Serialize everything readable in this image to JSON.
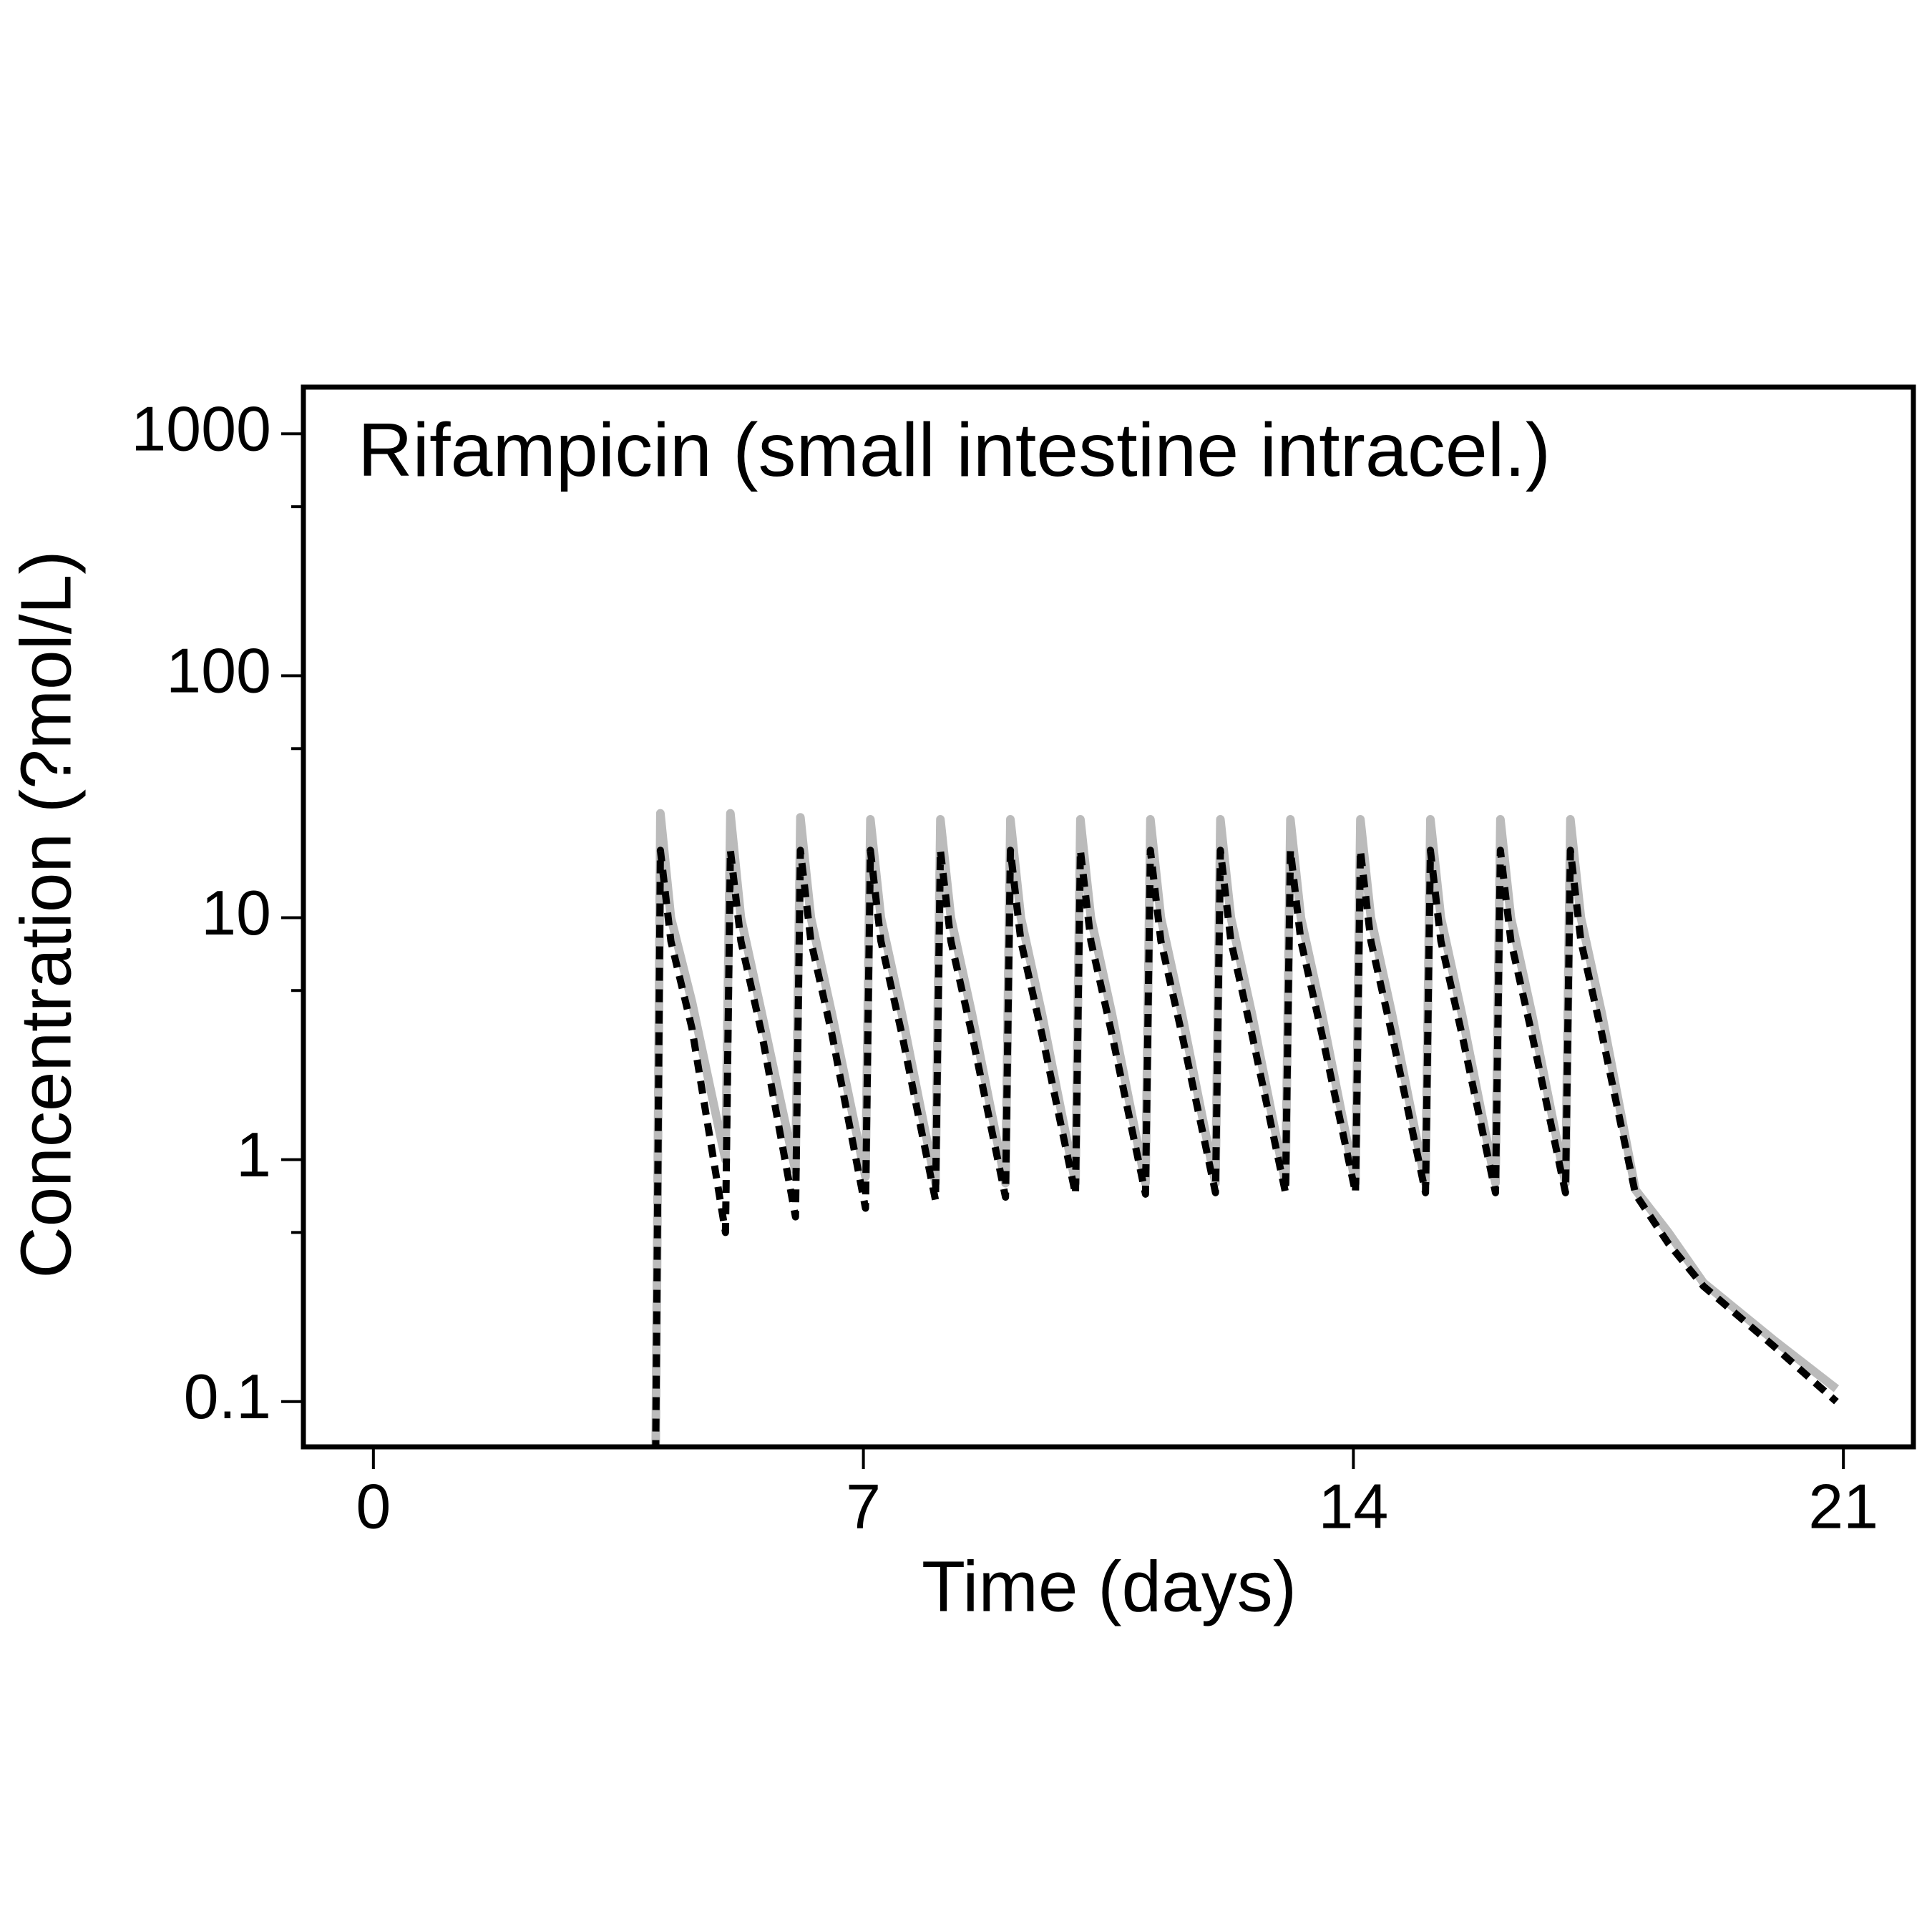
{
  "chart_data": {
    "type": "line",
    "title": "Rifampicin (small intestine intracel.)",
    "x_label": "Time (days)",
    "y_label": "Concentration (?mol/L)",
    "yscale": "log",
    "xlim": [
      -1,
      22
    ],
    "xticks": [
      0,
      7,
      14,
      21
    ],
    "ylim": [
      0.065,
      1560
    ],
    "yticks": [
      0.1,
      1,
      10,
      100,
      1000
    ],
    "yticks_minor": [
      0.5,
      5,
      50,
      500
    ],
    "x": [
      4.03,
      4.1,
      4.25,
      4.55,
      5.03,
      5.1,
      5.25,
      5.55,
      6.03,
      6.1,
      6.25,
      6.55,
      7.03,
      7.1,
      7.25,
      7.55,
      8.03,
      8.1,
      8.25,
      8.55,
      9.03,
      9.1,
      9.25,
      9.55,
      10.03,
      10.1,
      10.25,
      10.55,
      11.03,
      11.1,
      11.25,
      11.55,
      12.03,
      12.1,
      12.25,
      12.55,
      13.03,
      13.1,
      13.25,
      13.55,
      14.03,
      14.1,
      14.25,
      14.55,
      15.03,
      15.1,
      15.25,
      15.55,
      16.03,
      16.1,
      16.25,
      16.55,
      17.03,
      17.1,
      17.25,
      17.55,
      18.03,
      18.5,
      19,
      20,
      20.9
    ],
    "series": [
      {
        "color": "#bbbbbb",
        "dashed": false,
        "values": [
          0.05,
          27,
          10,
          4.5,
          1.0,
          27,
          10,
          4,
          0.9,
          26,
          10,
          4,
          0.85,
          25.5,
          10,
          4,
          0.8,
          25.5,
          10,
          4,
          0.8,
          25.5,
          10,
          4,
          0.8,
          25.5,
          10,
          4,
          0.8,
          25.5,
          10,
          4,
          0.8,
          25.5,
          10,
          4,
          0.8,
          25.5,
          10,
          4,
          0.8,
          25.5,
          10,
          4,
          0.8,
          25.5,
          10,
          4,
          0.8,
          25.5,
          10,
          4,
          0.8,
          25.5,
          10,
          4,
          0.75,
          0.5,
          0.31,
          0.18,
          0.113
        ]
      },
      {
        "color": "#000000",
        "dashed": true,
        "values": [
          0.05,
          19,
          8,
          3.5,
          0.5,
          19,
          8,
          3.3,
          0.58,
          19,
          8,
          3.3,
          0.63,
          19,
          8,
          3.3,
          0.68,
          19,
          8,
          3.3,
          0.7,
          19,
          8,
          3.3,
          0.72,
          19,
          8,
          3.3,
          0.72,
          19,
          8,
          3.3,
          0.73,
          19,
          8,
          3.3,
          0.73,
          19,
          8,
          3.3,
          0.73,
          19,
          8,
          3.3,
          0.73,
          19,
          8,
          3.3,
          0.73,
          19,
          8,
          3.3,
          0.73,
          19,
          8,
          3.3,
          0.72,
          0.45,
          0.3,
          0.17,
          0.1
        ]
      }
    ]
  }
}
